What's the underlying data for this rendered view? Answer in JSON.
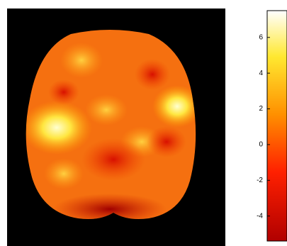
{
  "chart_data": {
    "type": "heatmap",
    "colormap": "hot",
    "clim": [
      -5.4,
      7.5
    ],
    "colorbar_ticks": [
      6,
      4,
      2,
      0,
      -2,
      -4
    ]
  }
}
